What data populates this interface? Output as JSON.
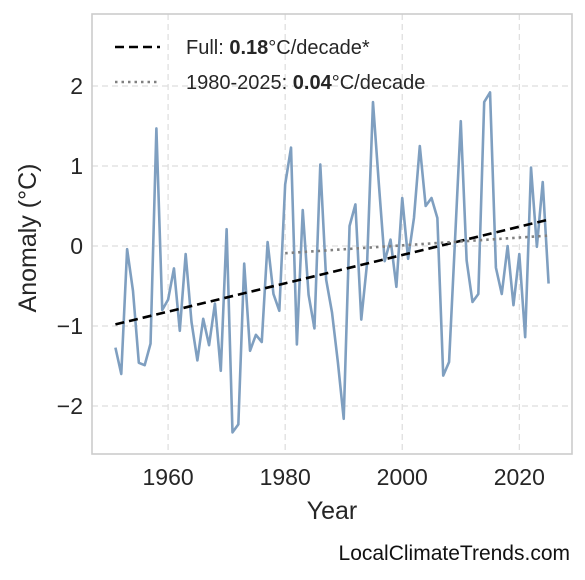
{
  "chart_data": {
    "type": "line",
    "xlabel": "Year",
    "ylabel": "Anomaly (°C)",
    "xlim": [
      1947,
      2029
    ],
    "ylim": [
      -2.6,
      2.9
    ],
    "xticks": [
      1960,
      1980,
      2000,
      2020
    ],
    "yticks": [
      -2,
      -1,
      0,
      1,
      2
    ],
    "ytick_labels": [
      "−2",
      "−1",
      "0",
      "1",
      "2"
    ],
    "grid": true,
    "legend_position": "top-left",
    "colors": {
      "series": "#7f9fc0",
      "full_trend": "#000000",
      "recent_trend": "#808080",
      "frame": "#cccccc",
      "grid": "#dddddd"
    },
    "series": [
      {
        "x": [
          1951,
          1952,
          1953,
          1954,
          1955,
          1956,
          1957,
          1958,
          1959,
          1960,
          1961,
          1962,
          1963,
          1964,
          1965,
          1966,
          1967,
          1968,
          1969,
          1970,
          1971,
          1972,
          1973,
          1974,
          1975,
          1976,
          1977,
          1978,
          1979,
          1980,
          1981,
          1982,
          1983,
          1984,
          1985,
          1986,
          1987,
          1988,
          1989,
          1990,
          1991,
          1992,
          1993,
          1994,
          1995,
          1996,
          1997,
          1998,
          1999,
          2000,
          2001,
          2002,
          2003,
          2004,
          2005,
          2006,
          2007,
          2008,
          2009,
          2010,
          2011,
          2012,
          2013,
          2014,
          2015,
          2016,
          2017,
          2018,
          2019,
          2020,
          2021,
          2022,
          2023,
          2024,
          2025
        ],
        "values": [
          -1.27,
          -1.6,
          -0.04,
          -0.56,
          -1.46,
          -1.49,
          -1.22,
          1.47,
          -0.8,
          -0.67,
          -0.28,
          -1.06,
          -0.1,
          -0.95,
          -1.43,
          -0.91,
          -1.24,
          -0.72,
          -1.56,
          0.21,
          -2.33,
          -2.23,
          -0.22,
          -1.31,
          -1.11,
          -1.2,
          0.05,
          -0.6,
          -0.81,
          0.77,
          1.23,
          -1.23,
          0.45,
          -0.61,
          -1.03,
          1.02,
          -0.42,
          -0.83,
          -1.45,
          -2.16,
          0.25,
          0.52,
          -0.92,
          -0.21,
          1.8,
          0.78,
          -0.19,
          0.08,
          -0.51,
          0.6,
          -0.16,
          0.35,
          1.25,
          0.5,
          0.6,
          0.35,
          -1.62,
          -1.45,
          0.05,
          1.56,
          -0.18,
          -0.7,
          -0.6,
          1.8,
          1.92,
          -0.27,
          -0.6,
          0.0,
          -0.74,
          -0.1,
          -1.14,
          0.98,
          -0.01,
          0.8,
          -0.47
        ]
      }
    ],
    "trends": [
      {
        "name": "Full",
        "rate": "0.18",
        "unit_suffix": "°C/decade*",
        "x": [
          1951,
          2025
        ],
        "y": [
          -0.98,
          0.33
        ],
        "style": "dashed"
      },
      {
        "name": "1980-2025",
        "rate": "0.04",
        "unit_suffix": "°C/decade",
        "x": [
          1980,
          2025
        ],
        "y": [
          -0.09,
          0.13
        ],
        "style": "dotted"
      }
    ]
  },
  "legend": {
    "full_prefix": "Full: ",
    "full_rate": "0.18",
    "full_suffix": "°C/decade*",
    "recent_prefix": "1980-2025: ",
    "recent_rate": "0.04",
    "recent_suffix": "°C/decade"
  },
  "watermark": "LocalClimateTrends.com"
}
